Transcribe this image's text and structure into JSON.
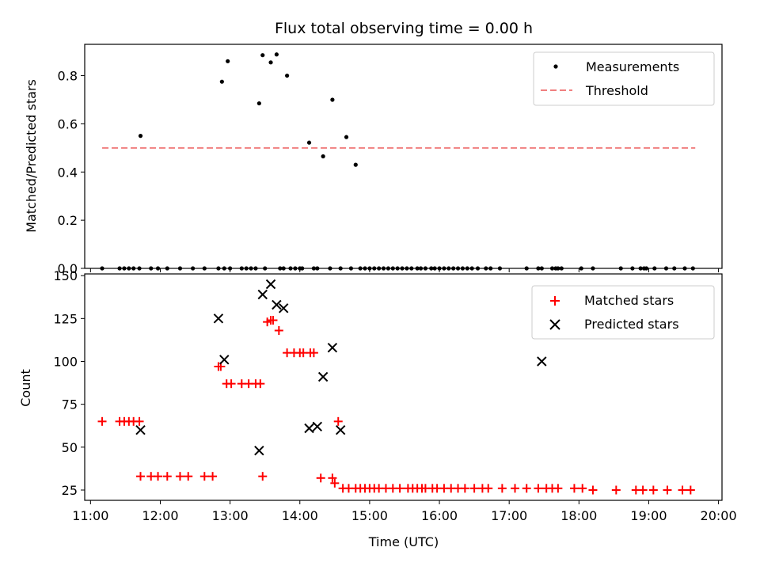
{
  "chart_data": [
    {
      "type": "scatter",
      "title": "Flux total observing time = 0.00 h",
      "xlabel": "",
      "ylabel": "Matched/Predicted stars",
      "xlim": [
        "10:55",
        "20:03"
      ],
      "ylim": [
        0,
        0.93
      ],
      "yticks": [
        0.0,
        0.2,
        0.4,
        0.6,
        0.8
      ],
      "ytick_labels": [
        "0.0",
        "0.2",
        "0.4",
        "0.6",
        "0.8"
      ],
      "grid": false,
      "legend_position": "top-right",
      "series": [
        {
          "name": "Measurements",
          "kind": "scatter",
          "marker": "dot",
          "color": "#000000",
          "x": [
            "11:10",
            "11:25",
            "11:29",
            "11:33",
            "11:37",
            "11:42",
            "11:43",
            "11:52",
            "11:58",
            "12:06",
            "12:17",
            "12:28",
            "12:38",
            "12:50",
            "12:53",
            "12:55",
            "12:58",
            "13:00",
            "13:10",
            "13:14",
            "13:18",
            "13:22",
            "13:25",
            "13:28",
            "13:30",
            "13:35",
            "13:40",
            "13:43",
            "13:46",
            "13:49",
            "13:52",
            "13:56",
            "14:00",
            "14:02",
            "14:08",
            "14:12",
            "14:15",
            "14:20",
            "14:26",
            "14:28",
            "14:35",
            "14:40",
            "14:44",
            "14:48",
            "14:52",
            "14:56",
            "15:00",
            "15:04",
            "15:08",
            "15:12",
            "15:16",
            "15:20",
            "15:24",
            "15:28",
            "15:32",
            "15:36",
            "15:41",
            "15:44",
            "15:48",
            "15:53",
            "15:56",
            "16:00",
            "16:04",
            "16:08",
            "16:12",
            "16:16",
            "16:20",
            "16:24",
            "16:28",
            "16:33",
            "16:40",
            "16:44",
            "16:52",
            "17:15",
            "17:25",
            "17:28",
            "17:37",
            "17:40",
            "17:42",
            "17:45",
            "18:02",
            "18:12",
            "18:36",
            "18:46",
            "18:53",
            "18:56",
            "18:58",
            "19:05",
            "19:15",
            "19:22",
            "19:31",
            "19:38"
          ],
          "y": [
            0.0,
            0.0,
            0.0,
            0.0,
            0.0,
            0.0,
            0.55,
            0.0,
            0.0,
            0.0,
            0.0,
            0.0,
            0.0,
            0.0,
            0.775,
            0.0,
            0.86,
            0.0,
            0.0,
            0.0,
            0.0,
            0.0,
            0.685,
            0.885,
            0.0,
            0.855,
            0.888,
            0.0,
            0.0,
            0.8,
            0.0,
            0.0,
            0.0,
            0.0,
            0.522,
            0.0,
            0.0,
            0.465,
            0.0,
            0.7,
            0.0,
            0.545,
            0.0,
            0.43,
            0.0,
            0.0,
            0.0,
            0.0,
            0.0,
            0.0,
            0.0,
            0.0,
            0.0,
            0.0,
            0.0,
            0.0,
            0.0,
            0.0,
            0.0,
            0.0,
            0.0,
            0.0,
            0.0,
            0.0,
            0.0,
            0.0,
            0.0,
            0.0,
            0.0,
            0.0,
            0.0,
            0.0,
            0.0,
            0.0,
            0.0,
            0.0,
            0.0,
            0.0,
            0.0,
            0.0,
            0.0,
            0.0,
            0.0,
            0.0,
            0.0,
            0.0,
            0.0,
            0.0,
            0.0,
            0.0,
            0.0,
            0.0
          ]
        },
        {
          "name": "Threshold",
          "kind": "line",
          "style": "dashed",
          "color": "#f08080",
          "x": [
            "11:10",
            "19:40"
          ],
          "y": [
            0.5,
            0.5
          ]
        }
      ]
    },
    {
      "type": "scatter",
      "title": "",
      "xlabel": "Time (UTC)",
      "ylabel": "Count",
      "xlim": [
        "10:55",
        "20:03"
      ],
      "ylim": [
        19,
        151
      ],
      "xticks": [
        "11:00",
        "12:00",
        "13:00",
        "14:00",
        "15:00",
        "16:00",
        "17:00",
        "18:00",
        "19:00",
        "20:00"
      ],
      "yticks": [
        25,
        50,
        75,
        100,
        125,
        150
      ],
      "ytick_labels": [
        "25",
        "50",
        "75",
        "100",
        "125",
        "150"
      ],
      "grid": false,
      "legend_position": "top-right",
      "series": [
        {
          "name": "Matched stars",
          "kind": "scatter",
          "marker": "plus",
          "color": "#ff0000",
          "x": [
            "11:10",
            "11:25",
            "11:29",
            "11:33",
            "11:37",
            "11:42",
            "11:43",
            "11:52",
            "11:58",
            "12:06",
            "12:17",
            "12:24",
            "12:38",
            "12:45",
            "12:50",
            "12:52",
            "12:57",
            "13:01",
            "13:10",
            "13:16",
            "13:22",
            "13:26",
            "13:28",
            "13:32",
            "13:35",
            "13:37",
            "13:42",
            "13:49",
            "13:55",
            "14:00",
            "14:03",
            "14:09",
            "14:12",
            "14:18",
            "14:28",
            "14:30",
            "14:33",
            "14:37",
            "14:42",
            "14:48",
            "14:52",
            "14:56",
            "15:00",
            "15:04",
            "15:08",
            "15:14",
            "15:20",
            "15:26",
            "15:33",
            "15:37",
            "15:41",
            "15:45",
            "15:48",
            "15:54",
            "15:58",
            "16:04",
            "16:10",
            "16:16",
            "16:22",
            "16:30",
            "16:37",
            "16:42",
            "16:54",
            "17:05",
            "17:15",
            "17:25",
            "17:32",
            "17:37",
            "17:42",
            "17:56",
            "18:03",
            "18:12",
            "18:32",
            "18:49",
            "18:55",
            "19:04",
            "19:16",
            "19:29",
            "19:36"
          ],
          "y": [
            65,
            65,
            65,
            65,
            65,
            65,
            33,
            33,
            33,
            33,
            33,
            33,
            33,
            33,
            97,
            97,
            87,
            87,
            87,
            87,
            87,
            87,
            33,
            123,
            124,
            124,
            118,
            105,
            105,
            105,
            105,
            105,
            105,
            32,
            32,
            29,
            65,
            26,
            26,
            26,
            26,
            26,
            26,
            26,
            26,
            26,
            26,
            26,
            26,
            26,
            26,
            26,
            26,
            26,
            26,
            26,
            26,
            26,
            26,
            26,
            26,
            26,
            26,
            26,
            26,
            26,
            26,
            26,
            26,
            26,
            26,
            25,
            25,
            25,
            25,
            25,
            25,
            25,
            25
          ]
        },
        {
          "name": "Predicted stars",
          "kind": "scatter",
          "marker": "x",
          "color": "#000000",
          "x": [
            "11:43",
            "12:50",
            "12:55",
            "13:25",
            "13:28",
            "13:35",
            "13:40",
            "13:46",
            "14:08",
            "14:15",
            "14:20",
            "14:28",
            "14:35",
            "17:28"
          ],
          "y": [
            60,
            125,
            101,
            48,
            139,
            145,
            133,
            131,
            61,
            62,
            91,
            108,
            60,
            100
          ]
        }
      ]
    }
  ]
}
